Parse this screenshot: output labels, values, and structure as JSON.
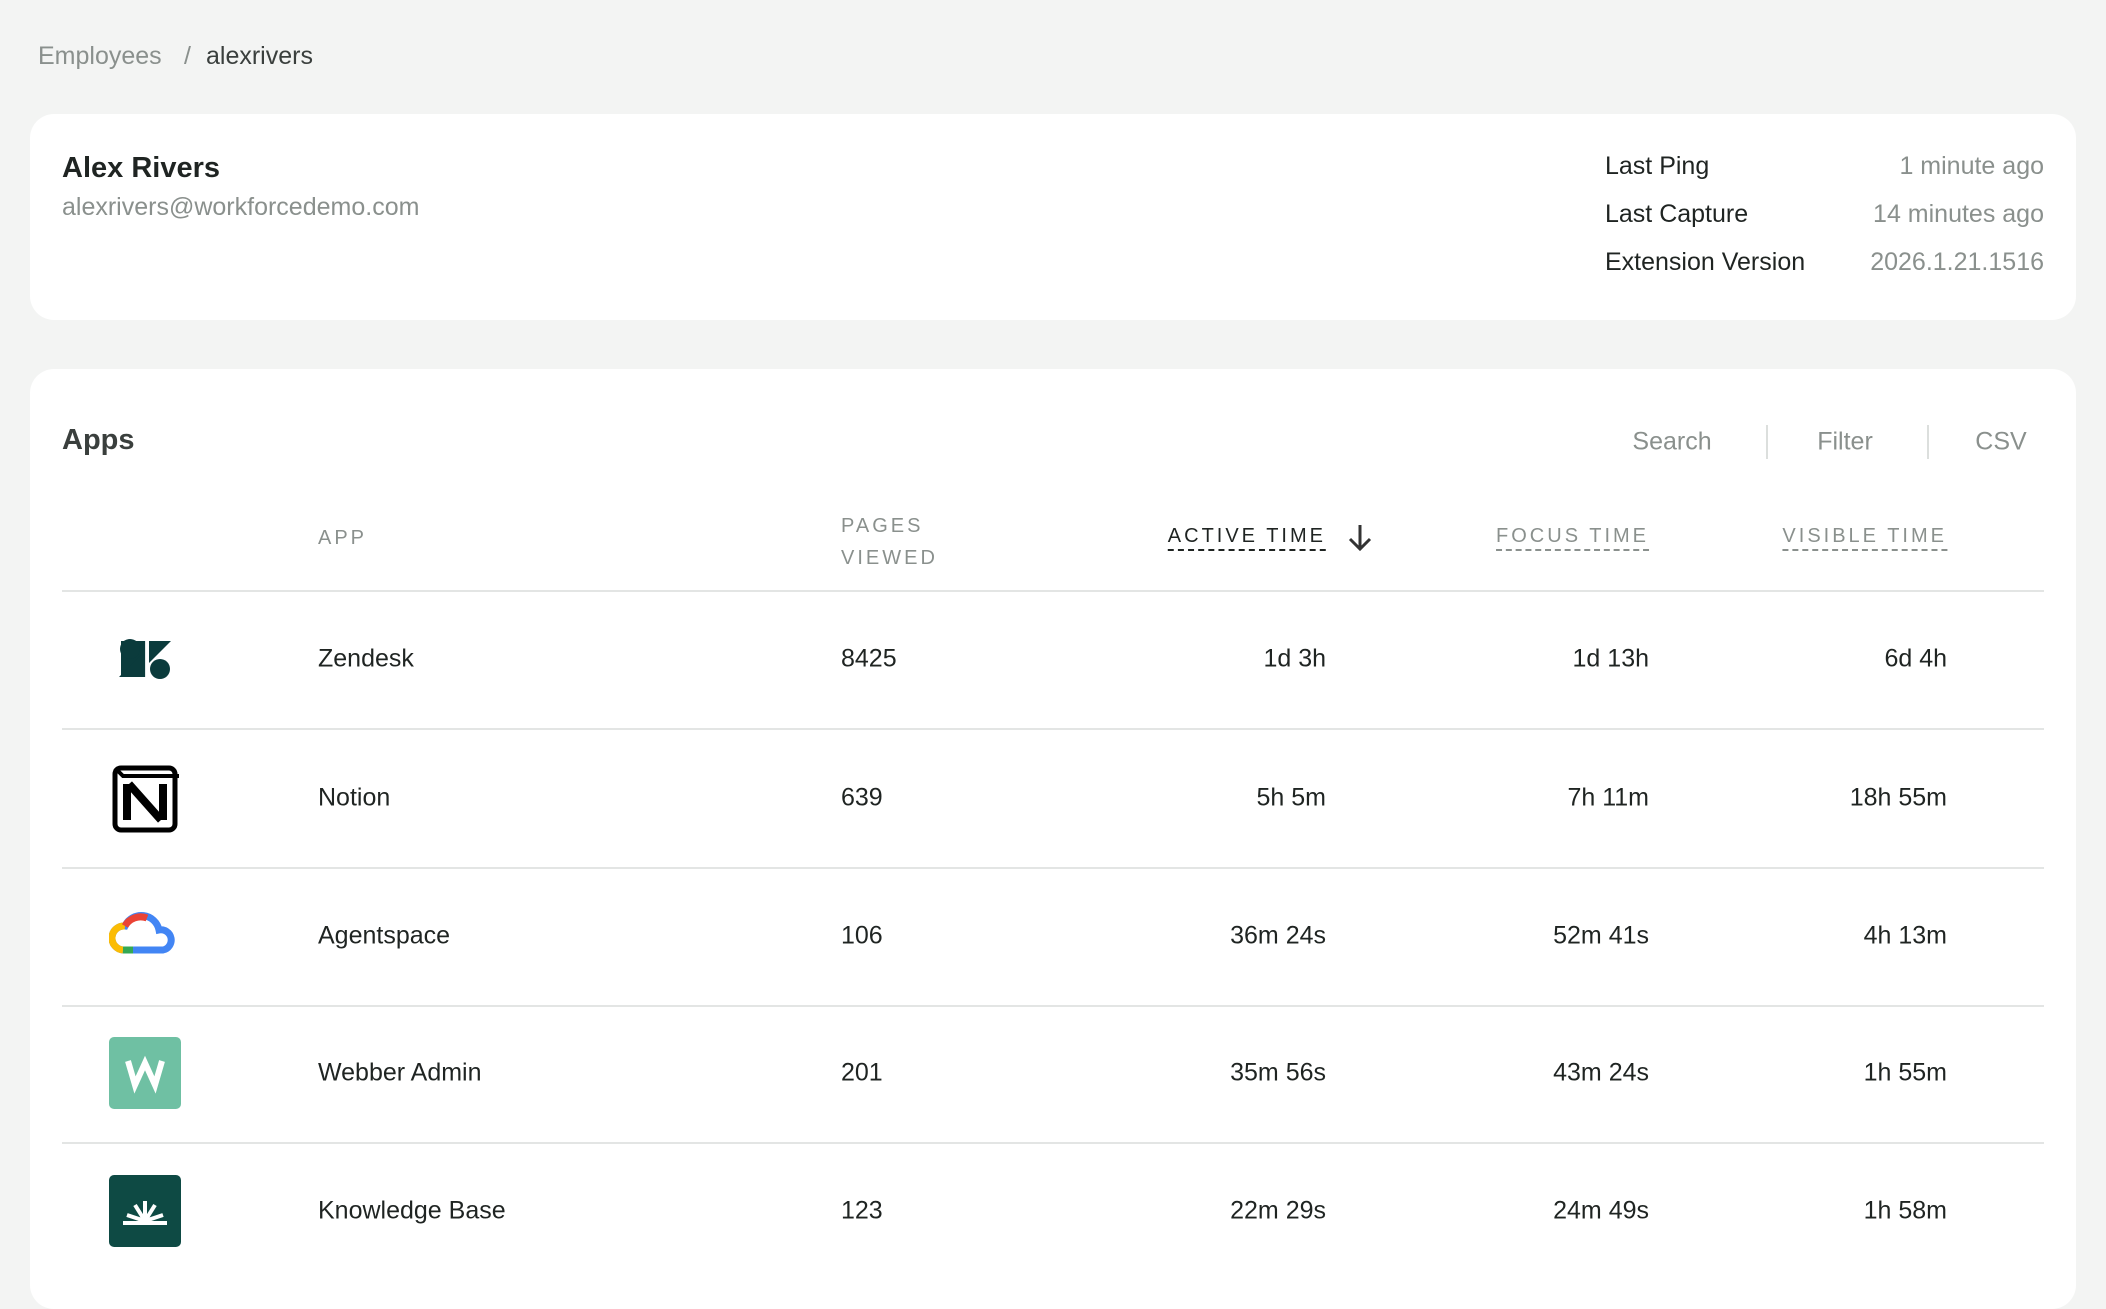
{
  "breadcrumb": {
    "parent": "Employees",
    "separator": "/",
    "current": "alexrivers"
  },
  "profile": {
    "name": "Alex Rivers",
    "email": "alexrivers@workforcedemo.com",
    "details": [
      {
        "label": "Last Ping",
        "value": "1 minute ago"
      },
      {
        "label": "Last Capture",
        "value": "14 minutes ago"
      },
      {
        "label": "Extension Version",
        "value": "2026.1.21.1516"
      }
    ]
  },
  "apps": {
    "title": "Apps",
    "actions": [
      "Search",
      "Filter",
      "CSV"
    ],
    "columns": [
      "APP",
      "PAGES VIEWED",
      "ACTIVE TIME",
      "FOCUS TIME",
      "VISIBLE TIME"
    ],
    "rows": [
      [
        "Zendesk",
        "8425",
        "1d 3h",
        "1d 13h",
        "6d 4h"
      ],
      [
        "Notion",
        "639",
        "5h 5m",
        "7h 11m",
        "18h 55m"
      ],
      [
        "Agentspace",
        "106",
        "36m 24s",
        "52m 41s",
        "4h 13m"
      ],
      [
        "Webber Admin",
        "201",
        "35m 56s",
        "43m 24s",
        "1h 55m"
      ],
      [
        "Knowledge Base",
        "123",
        "22m 29s",
        "24m 49s",
        "1h 58m"
      ]
    ]
  }
}
